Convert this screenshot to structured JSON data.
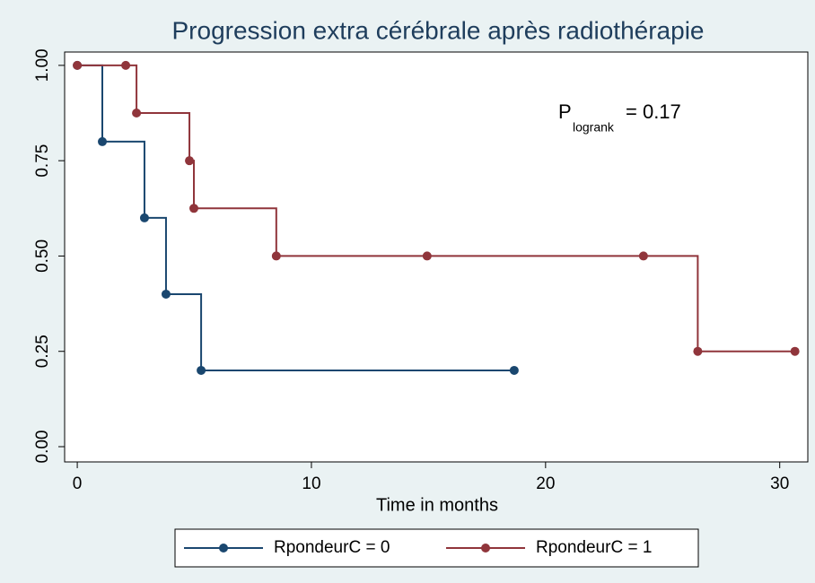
{
  "chart_data": {
    "type": "step",
    "title": "Progression extra cérébrale après radiothérapie",
    "x_label": "Time in months",
    "annotation": {
      "text": "P",
      "subscript": "logrank",
      "value_text": "=  0.17"
    },
    "xlim": [
      -0.54,
      31.2
    ],
    "xticks": [
      0,
      10,
      20,
      30
    ],
    "ylim": [
      -0.04,
      1.035
    ],
    "yticks": [
      {
        "value": 0,
        "label": "0.00"
      },
      {
        "value": 0.25,
        "label": "0.25"
      },
      {
        "value": 0.5,
        "label": "0.50"
      },
      {
        "value": 0.75,
        "label": "0.75"
      },
      {
        "value": 1,
        "label": "1.00"
      }
    ],
    "series": [
      {
        "name": "RpondeurC = 0",
        "color": "#1a476f",
        "x": [
          0,
          1.07,
          2.87,
          3.79,
          5.29,
          18.66
        ],
        "values": [
          1,
          0.8,
          0.6,
          0.4,
          0.2,
          0.2
        ]
      },
      {
        "name": "RpondeurC = 1",
        "color": "#90353b",
        "x": [
          0,
          2.07,
          2.53,
          4.79,
          4.98,
          8.5,
          14.94,
          24.18,
          26.5,
          30.65
        ],
        "values": [
          1,
          1,
          0.875,
          0.75,
          0.625,
          0.5,
          0.5,
          0.5,
          0.25,
          0.25
        ]
      }
    ]
  }
}
